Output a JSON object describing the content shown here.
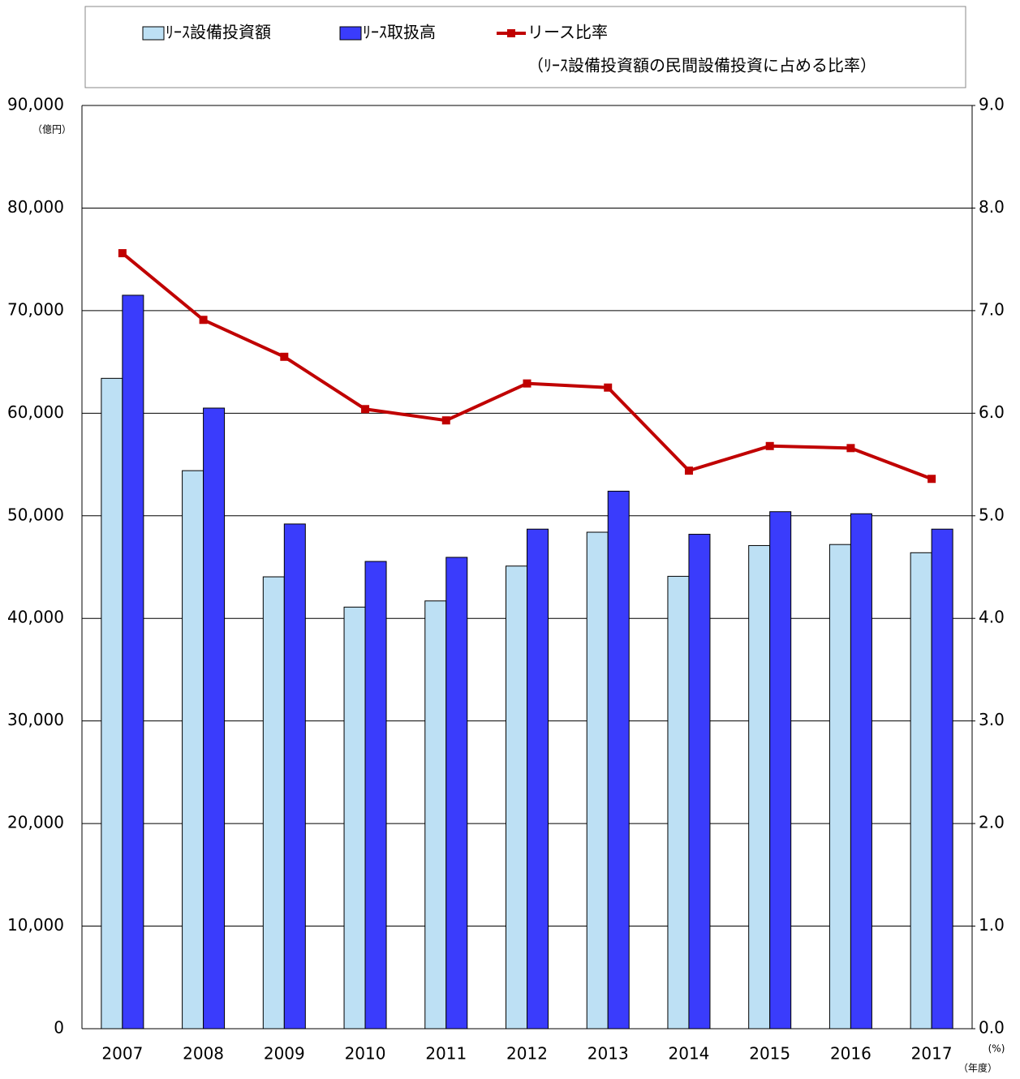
{
  "chart_data": {
    "type": "bar",
    "categories": [
      "2007",
      "2008",
      "2009",
      "2010",
      "2011",
      "2012",
      "2013",
      "2014",
      "2015",
      "2016",
      "2017"
    ],
    "series": [
      {
        "name": "ﾘｰｽ設備投資額",
        "color": "#bde0f4",
        "values": [
          63400,
          54400,
          44050,
          41100,
          41700,
          45100,
          48400,
          44100,
          47100,
          47200,
          46400
        ]
      },
      {
        "name": "ﾘｰｽ取扱高",
        "color": "#3a3cfc",
        "values": [
          71500,
          60500,
          49200,
          45550,
          45950,
          48700,
          52400,
          48200,
          50400,
          50200,
          48700
        ]
      },
      {
        "name": "リース比率",
        "color": "#c00000",
        "type": "line",
        "axis": "y2",
        "values": [
          7.56,
          6.91,
          6.55,
          6.04,
          5.93,
          6.29,
          6.25,
          5.44,
          5.68,
          5.66,
          5.36
        ]
      }
    ],
    "annotation": "（ﾘｰｽ設備投資額の民間設備投資に占める比率）",
    "y_unit": "（億円）",
    "y2_unit": "(%)",
    "x_unit": "（年度）",
    "ylim": [
      0,
      90000
    ],
    "yticks": [
      0,
      {
        "value": 10000,
        "label": "10,000"
      },
      {
        "value": 20000,
        "label": "20,000"
      },
      {
        "value": 30000,
        "label": "30,000"
      },
      {
        "value": 40000,
        "label": "40,000"
      },
      {
        "value": 50000,
        "label": "50,000"
      },
      {
        "value": 60000,
        "label": "60,000"
      },
      {
        "value": 70000,
        "label": "70,000"
      },
      {
        "value": 80000,
        "label": "80,000"
      },
      {
        "value": 90000,
        "label": "90,000"
      }
    ],
    "y2lim": [
      0,
      9
    ],
    "y2ticks": [
      {
        "value": 0,
        "label": "0.0"
      },
      {
        "value": 1,
        "label": "1.0"
      },
      {
        "value": 2,
        "label": "2.0"
      },
      {
        "value": 3,
        "label": "3.0"
      },
      {
        "value": 4,
        "label": "4.0"
      },
      {
        "value": 5,
        "label": "5.0"
      },
      {
        "value": 6,
        "label": "6.0"
      },
      {
        "value": 7,
        "label": "7.0"
      },
      {
        "value": 8,
        "label": "8.0"
      },
      {
        "value": 9,
        "label": "9.0"
      }
    ],
    "grid": true
  }
}
